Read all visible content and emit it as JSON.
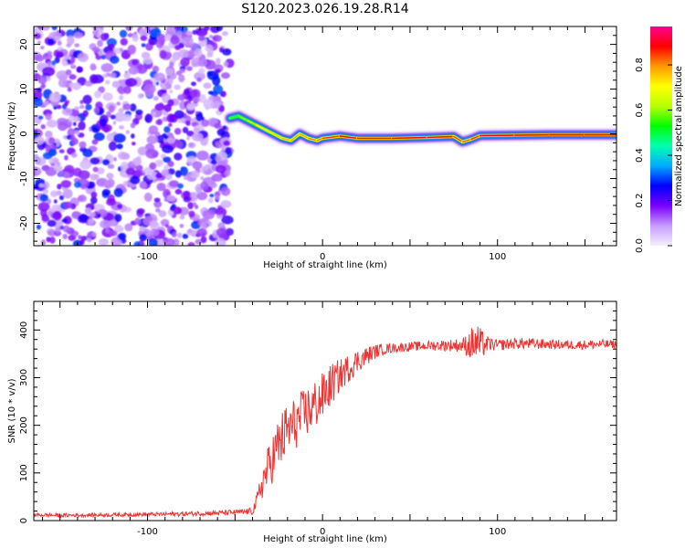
{
  "title": "S120.2023.026.19.28.R14",
  "colorbar": {
    "label": "Normalized spectral amplitude",
    "ticks": [
      "0.0",
      "0.2",
      "0.4",
      "0.6",
      "0.8"
    ],
    "tick_values": [
      0.0,
      0.2,
      0.4,
      0.6,
      0.8
    ],
    "range": [
      0,
      0.97
    ],
    "colormap": [
      "#f5efff",
      "#c79cff",
      "#7a00ff",
      "#0000ff",
      "#00aaff",
      "#00ffb0",
      "#00ff00",
      "#b8ff00",
      "#ffff00",
      "#ff9a00",
      "#ff0000",
      "#ff0090"
    ]
  },
  "chart_data": [
    {
      "type": "heatmap",
      "xlabel": "Height of straight line (km)",
      "ylabel": "Frequency (Hz)",
      "xlim": [
        -165,
        168
      ],
      "ylim": [
        -25,
        24
      ],
      "xticks": [
        -100,
        0,
        100
      ],
      "xtick_labels": [
        "-100",
        "0",
        "100"
      ],
      "yticks": [
        -20,
        -10,
        0,
        10,
        20
      ],
      "ytick_labels": [
        "-20",
        "-10",
        "0",
        "10",
        "20"
      ],
      "noise_region_x": [
        -165,
        -53
      ],
      "ridge": {
        "x": [
          -53,
          -48,
          -43,
          -38,
          -33,
          -28,
          -23,
          -18,
          -13,
          -8,
          -3,
          0,
          10,
          20,
          40,
          60,
          75,
          80,
          85,
          90,
          110,
          130,
          150,
          168
        ],
        "y": [
          3.5,
          4,
          3,
          2,
          1,
          0,
          -1,
          -1.5,
          0,
          -1,
          -1.5,
          -1,
          -0.5,
          -1,
          -1,
          -0.8,
          -0.6,
          -1.8,
          -1.2,
          -0.4,
          -0.3,
          -0.2,
          -0.2,
          -0.2
        ],
        "amplitude": [
          0.55,
          0.6,
          0.65,
          0.72,
          0.75,
          0.75,
          0.78,
          0.8,
          0.8,
          0.82,
          0.85,
          0.85,
          0.9,
          0.9,
          0.9,
          0.92,
          0.88,
          0.85,
          0.86,
          0.9,
          0.92,
          0.94,
          0.94,
          0.94
        ]
      }
    },
    {
      "type": "line",
      "xlabel": "Height of straight line (km)",
      "ylabel": "SNR (10 * v/v)",
      "xlim": [
        -165,
        168
      ],
      "ylim": [
        0,
        460
      ],
      "xticks": [
        -100,
        0,
        100
      ],
      "xtick_labels": [
        "-100",
        "0",
        "100"
      ],
      "yticks": [
        0,
        100,
        200,
        300,
        400
      ],
      "ytick_labels": [
        "0",
        "100",
        "200",
        "300",
        "400"
      ],
      "color": "#ee3333",
      "series": [
        {
          "x": [
            -165,
            -150,
            -120,
            -100,
            -80,
            -60,
            -45,
            -40,
            -37,
            -35,
            -30,
            -25,
            -20,
            -15,
            -10,
            -5,
            0,
            5,
            10,
            15,
            20,
            25,
            30,
            35,
            40,
            50,
            60,
            70,
            80,
            85,
            88,
            90,
            95,
            100,
            110,
            120,
            130,
            140,
            150,
            160,
            168
          ],
          "values": [
            12,
            11,
            12,
            13,
            14,
            16,
            18,
            20,
            45,
            75,
            120,
            160,
            190,
            205,
            225,
            240,
            260,
            285,
            305,
            320,
            335,
            345,
            355,
            360,
            362,
            365,
            367,
            368,
            368,
            370,
            372,
            370,
            370,
            368,
            372,
            371,
            370,
            369,
            369,
            370,
            370
          ],
          "noise": [
            4,
            4,
            4,
            4,
            5,
            5,
            6,
            8,
            20,
            35,
            50,
            60,
            60,
            55,
            55,
            55,
            50,
            45,
            35,
            30,
            25,
            20,
            15,
            12,
            10,
            10,
            10,
            12,
            15,
            35,
            45,
            35,
            15,
            12,
            12,
            12,
            10,
            10,
            10,
            10,
            8
          ]
        }
      ]
    }
  ]
}
